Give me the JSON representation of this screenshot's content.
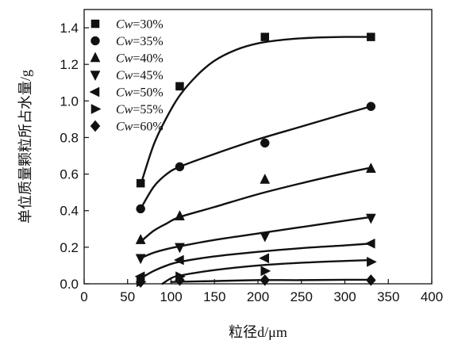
{
  "chart_data": {
    "type": "scatter",
    "xlabel": "粒径d/μm",
    "ylabel": "单位质量颗粒所占水量/g",
    "xlim": [
      0,
      400
    ],
    "ylim": [
      0,
      1.5
    ],
    "xticks": [
      0,
      50,
      100,
      150,
      200,
      250,
      300,
      350,
      400
    ],
    "yticks": [
      0.0,
      0.2,
      0.4,
      0.6,
      0.8,
      1.0,
      1.2,
      1.4
    ],
    "legend_position": "top-left",
    "grid": false,
    "series": [
      {
        "name": "Cw=30%",
        "marker": "square",
        "x": [
          65,
          110,
          208,
          330
        ],
        "y": [
          0.55,
          1.08,
          1.35,
          1.35
        ],
        "fit": [
          [
            65,
            0.54
          ],
          [
            80,
            0.76
          ],
          [
            95,
            0.91
          ],
          [
            110,
            1.03
          ],
          [
            130,
            1.14
          ],
          [
            150,
            1.22
          ],
          [
            175,
            1.28
          ],
          [
            200,
            1.315
          ],
          [
            230,
            1.335
          ],
          [
            260,
            1.345
          ],
          [
            300,
            1.35
          ],
          [
            330,
            1.35
          ]
        ]
      },
      {
        "name": "Cw=35%",
        "marker": "circle",
        "x": [
          65,
          110,
          208,
          330
        ],
        "y": [
          0.41,
          0.64,
          0.77,
          0.97
        ],
        "fit": [
          [
            65,
            0.41
          ],
          [
            80,
            0.53
          ],
          [
            95,
            0.6
          ],
          [
            110,
            0.64
          ],
          [
            150,
            0.71
          ],
          [
            200,
            0.79
          ],
          [
            250,
            0.86
          ],
          [
            300,
            0.93
          ],
          [
            330,
            0.97
          ]
        ]
      },
      {
        "name": "Cw=40%",
        "marker": "triangle-up",
        "x": [
          65,
          110,
          208,
          330
        ],
        "y": [
          0.24,
          0.37,
          0.57,
          0.63
        ],
        "fit": [
          [
            65,
            0.23
          ],
          [
            80,
            0.29
          ],
          [
            95,
            0.33
          ],
          [
            110,
            0.365
          ],
          [
            150,
            0.42
          ],
          [
            200,
            0.49
          ],
          [
            250,
            0.55
          ],
          [
            300,
            0.605
          ],
          [
            330,
            0.635
          ]
        ]
      },
      {
        "name": "Cw=45%",
        "marker": "triangle-down",
        "x": [
          65,
          110,
          208,
          330
        ],
        "y": [
          0.14,
          0.2,
          0.26,
          0.36
        ],
        "fit": [
          [
            65,
            0.14
          ],
          [
            80,
            0.17
          ],
          [
            95,
            0.19
          ],
          [
            110,
            0.205
          ],
          [
            150,
            0.24
          ],
          [
            200,
            0.275
          ],
          [
            250,
            0.31
          ],
          [
            300,
            0.345
          ],
          [
            330,
            0.365
          ]
        ]
      },
      {
        "name": "Cw=50%",
        "marker": "triangle-left",
        "x": [
          65,
          110,
          208,
          330
        ],
        "y": [
          0.04,
          0.13,
          0.14,
          0.22
        ],
        "fit": [
          [
            65,
            0.03
          ],
          [
            80,
            0.07
          ],
          [
            95,
            0.1
          ],
          [
            110,
            0.12
          ],
          [
            150,
            0.15
          ],
          [
            200,
            0.175
          ],
          [
            250,
            0.195
          ],
          [
            300,
            0.21
          ],
          [
            330,
            0.22
          ]
        ]
      },
      {
        "name": "Cw=55%",
        "marker": "triangle-right",
        "x": [
          65,
          110,
          208,
          330
        ],
        "y": [
          0.01,
          0.04,
          0.07,
          0.12
        ],
        "fit": [
          [
            90,
            0.0
          ],
          [
            100,
            0.03
          ],
          [
            110,
            0.045
          ],
          [
            150,
            0.075
          ],
          [
            200,
            0.1
          ],
          [
            250,
            0.115
          ],
          [
            300,
            0.125
          ],
          [
            330,
            0.13
          ]
        ]
      },
      {
        "name": "Cw=60%",
        "marker": "diamond",
        "x": [
          65,
          110,
          208,
          330
        ],
        "y": [
          0.01,
          0.02,
          0.02,
          0.02
        ],
        "fit": [
          [
            100,
            0.01
          ],
          [
            150,
            0.015
          ],
          [
            200,
            0.02
          ],
          [
            250,
            0.02
          ],
          [
            300,
            0.022
          ],
          [
            330,
            0.022
          ]
        ]
      }
    ]
  }
}
